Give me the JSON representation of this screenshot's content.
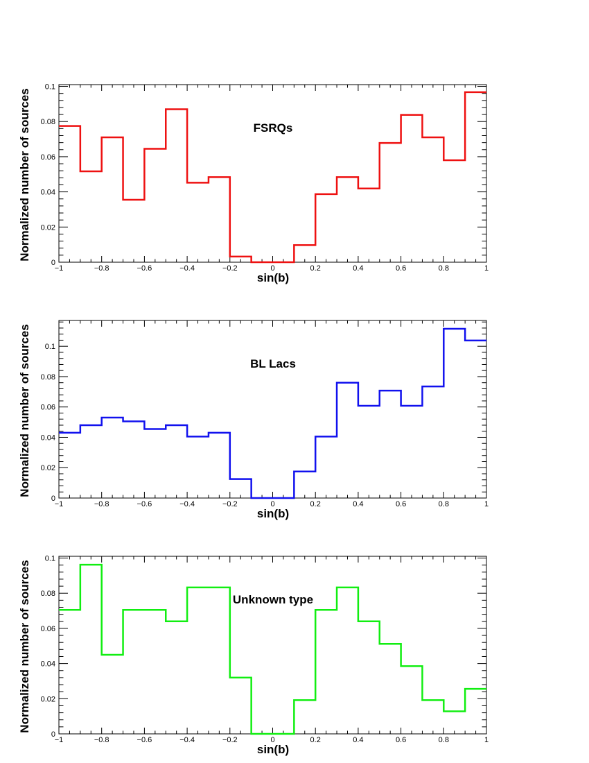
{
  "chart_data": [
    {
      "type": "histogram",
      "title": "FSRQs",
      "xlabel": "sin(b)",
      "ylabel": "Normalized number of sources",
      "xlim": [
        -1,
        1
      ],
      "ylim": [
        0,
        0.101
      ],
      "xticks": [
        -1,
        -0.8,
        -0.6,
        -0.4,
        -0.2,
        0,
        0.2,
        0.4,
        0.6,
        0.8,
        1
      ],
      "xtick_labels": [
        "−1",
        "−0.8",
        "−0.6",
        "−0.4",
        "−0.2",
        "0",
        "0.2",
        "0.4",
        "0.6",
        "0.8",
        "1"
      ],
      "yticks": [
        0,
        0.02,
        0.04,
        0.06,
        0.08,
        0.1
      ],
      "ytick_labels": [
        "0",
        "0.02",
        "0.04",
        "0.06",
        "0.08",
        "0.1"
      ],
      "bin_edges": [
        -1,
        -0.9,
        -0.8,
        -0.7,
        -0.6,
        -0.5,
        -0.4,
        -0.3,
        -0.2,
        -0.1,
        0,
        0.1,
        0.2,
        0.3,
        0.4,
        0.5,
        0.6,
        0.7,
        0.8,
        0.9,
        1
      ],
      "values": [
        0.0775,
        0.0517,
        0.071,
        0.0355,
        0.0645,
        0.087,
        0.0452,
        0.0484,
        0.0032,
        0,
        0,
        0.0097,
        0.0387,
        0.0484,
        0.0419,
        0.0678,
        0.0838,
        0.071,
        0.058,
        0.0967
      ],
      "color": "#ee1111"
    },
    {
      "type": "histogram",
      "title": "BL Lacs",
      "xlabel": "sin(b)",
      "ylabel": "Normalized number of sources",
      "xlim": [
        -1,
        1
      ],
      "ylim": [
        0,
        0.117
      ],
      "xticks": [
        -1,
        -0.8,
        -0.6,
        -0.4,
        -0.2,
        0,
        0.2,
        0.4,
        0.6,
        0.8,
        1
      ],
      "xtick_labels": [
        "−1",
        "−0.8",
        "−0.6",
        "−0.4",
        "−0.2",
        "0",
        "0.2",
        "0.4",
        "0.6",
        "0.8",
        "1"
      ],
      "yticks": [
        0,
        0.02,
        0.04,
        0.06,
        0.08,
        0.1
      ],
      "ytick_labels": [
        "0",
        "0.02",
        "0.04",
        "0.06",
        "0.08",
        "0.1"
      ],
      "bin_edges": [
        -1,
        -0.9,
        -0.8,
        -0.7,
        -0.6,
        -0.5,
        -0.4,
        -0.3,
        -0.2,
        -0.1,
        0,
        0.1,
        0.2,
        0.3,
        0.4,
        0.5,
        0.6,
        0.7,
        0.8,
        0.9,
        1
      ],
      "values": [
        0.043,
        0.048,
        0.053,
        0.0505,
        0.0455,
        0.048,
        0.0405,
        0.043,
        0.0125,
        0,
        0,
        0.0175,
        0.0405,
        0.076,
        0.0608,
        0.0708,
        0.0608,
        0.0735,
        0.1115,
        0.1038
      ],
      "color": "#1111ee"
    },
    {
      "type": "histogram",
      "title": "Unknown type",
      "xlabel": "sin(b)",
      "ylabel": "Normalized number of sources",
      "xlim": [
        -1,
        1
      ],
      "ylim": [
        0,
        0.101
      ],
      "xticks": [
        -1,
        -0.8,
        -0.6,
        -0.4,
        -0.2,
        0,
        0.2,
        0.4,
        0.6,
        0.8,
        1
      ],
      "xtick_labels": [
        "−1",
        "−0.8",
        "−0.6",
        "−0.4",
        "−0.2",
        "0",
        "0.2",
        "0.4",
        "0.6",
        "0.8",
        "1"
      ],
      "yticks": [
        0,
        0.02,
        0.04,
        0.06,
        0.08,
        0.1
      ],
      "ytick_labels": [
        "0",
        "0.02",
        "0.04",
        "0.06",
        "0.08",
        "0.1"
      ],
      "bin_edges": [
        -1,
        -0.9,
        -0.8,
        -0.7,
        -0.6,
        -0.5,
        -0.4,
        -0.3,
        -0.2,
        -0.1,
        0,
        0.1,
        0.2,
        0.3,
        0.4,
        0.5,
        0.6,
        0.7,
        0.8,
        0.9,
        1
      ],
      "values": [
        0.0705,
        0.0962,
        0.045,
        0.0705,
        0.0705,
        0.064,
        0.0833,
        0.0833,
        0.032,
        0,
        0,
        0.0192,
        0.0705,
        0.0833,
        0.064,
        0.0512,
        0.0385,
        0.0192,
        0.0128,
        0.0256
      ],
      "color": "#11ee11"
    }
  ]
}
